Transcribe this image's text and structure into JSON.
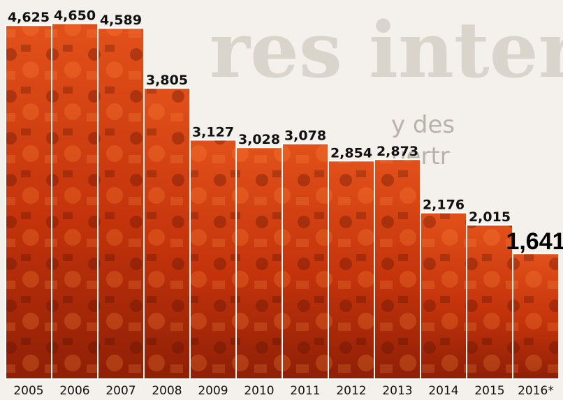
{
  "chart_data": {
    "type": "bar",
    "categories": [
      "2005",
      "2006",
      "2007",
      "2008",
      "2009",
      "2010",
      "2011",
      "2012",
      "2013",
      "2014",
      "2015",
      "2016*"
    ],
    "values": [
      4625,
      4650,
      4589,
      3805,
      3127,
      3028,
      3078,
      2854,
      2873,
      2176,
      2015,
      1641
    ],
    "value_labels": [
      "4,625",
      "4,650",
      "4,589",
      "3,805",
      "3,127",
      "3,028",
      "3,078",
      "2,854",
      "2,873",
      "2,176",
      "2,015",
      "1,641"
    ],
    "highlight_index": 11,
    "title": "",
    "xlabel": "",
    "ylabel": "",
    "ylim": [
      0,
      4700
    ],
    "grid": false,
    "legend": "none",
    "colors": {
      "bar_dark": "#8f1f06",
      "bar_mid": "#d9400e",
      "bar_light": "#f07a2e",
      "bar_border": "#ffffff",
      "background": "#f4f1ec"
    }
  }
}
